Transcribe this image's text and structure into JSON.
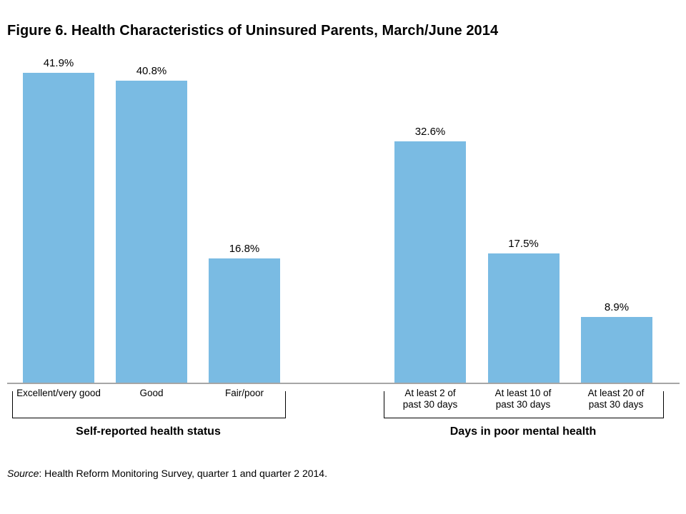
{
  "figure": {
    "title": "Figure 6. Health Characteristics of Uninsured Parents, March/June 2014"
  },
  "source": {
    "prefix": "Source",
    "text": ": Health Reform Monitoring Survey, quarter 1 and quarter 2 2014."
  },
  "colors": {
    "bar_fill": "#7abbe3",
    "axis_line": "#a6a6a6",
    "bracket": "#000000",
    "text": "#000000"
  },
  "chart_data": {
    "type": "bar",
    "title": "Figure 6. Health Characteristics of Uninsured Parents, March/June 2014",
    "xlabel": "",
    "ylabel": "",
    "unit": "percent",
    "ylim": [
      0,
      45
    ],
    "grid": false,
    "data_labels": true,
    "legend": null,
    "groups": [
      {
        "label": "Self-reported health status",
        "categories": [
          "Excellent/very good",
          "Good",
          "Fair/poor"
        ],
        "values": [
          41.9,
          40.8,
          16.8
        ],
        "bars": [
          {
            "category": "Excellent/very good",
            "category_lines": [
              "Excellent/very good"
            ],
            "value": 41.9,
            "label": "41.9%"
          },
          {
            "category": "Good",
            "category_lines": [
              "Good"
            ],
            "value": 40.8,
            "label": "40.8%"
          },
          {
            "category": "Fair/poor",
            "category_lines": [
              "Fair/poor"
            ],
            "value": 16.8,
            "label": "16.8%"
          }
        ]
      },
      {
        "label": "Days in poor mental health",
        "categories": [
          "At least 2 of past 30 days",
          "At least 10 of past 30 days",
          "At least 20 of past 30 days"
        ],
        "values": [
          32.6,
          17.5,
          8.9
        ],
        "bars": [
          {
            "category": "At least 2 of past 30 days",
            "category_lines": [
              "At least 2 of",
              "past 30 days"
            ],
            "value": 32.6,
            "label": "32.6%"
          },
          {
            "category": "At least 10 of past 30 days",
            "category_lines": [
              "At least 10 of",
              "past 30 days"
            ],
            "value": 17.5,
            "label": "17.5%"
          },
          {
            "category": "At least 20 of past 30 days",
            "category_lines": [
              "At least 20 of",
              "past 30 days"
            ],
            "value": 8.9,
            "label": "8.9%"
          }
        ]
      }
    ]
  }
}
